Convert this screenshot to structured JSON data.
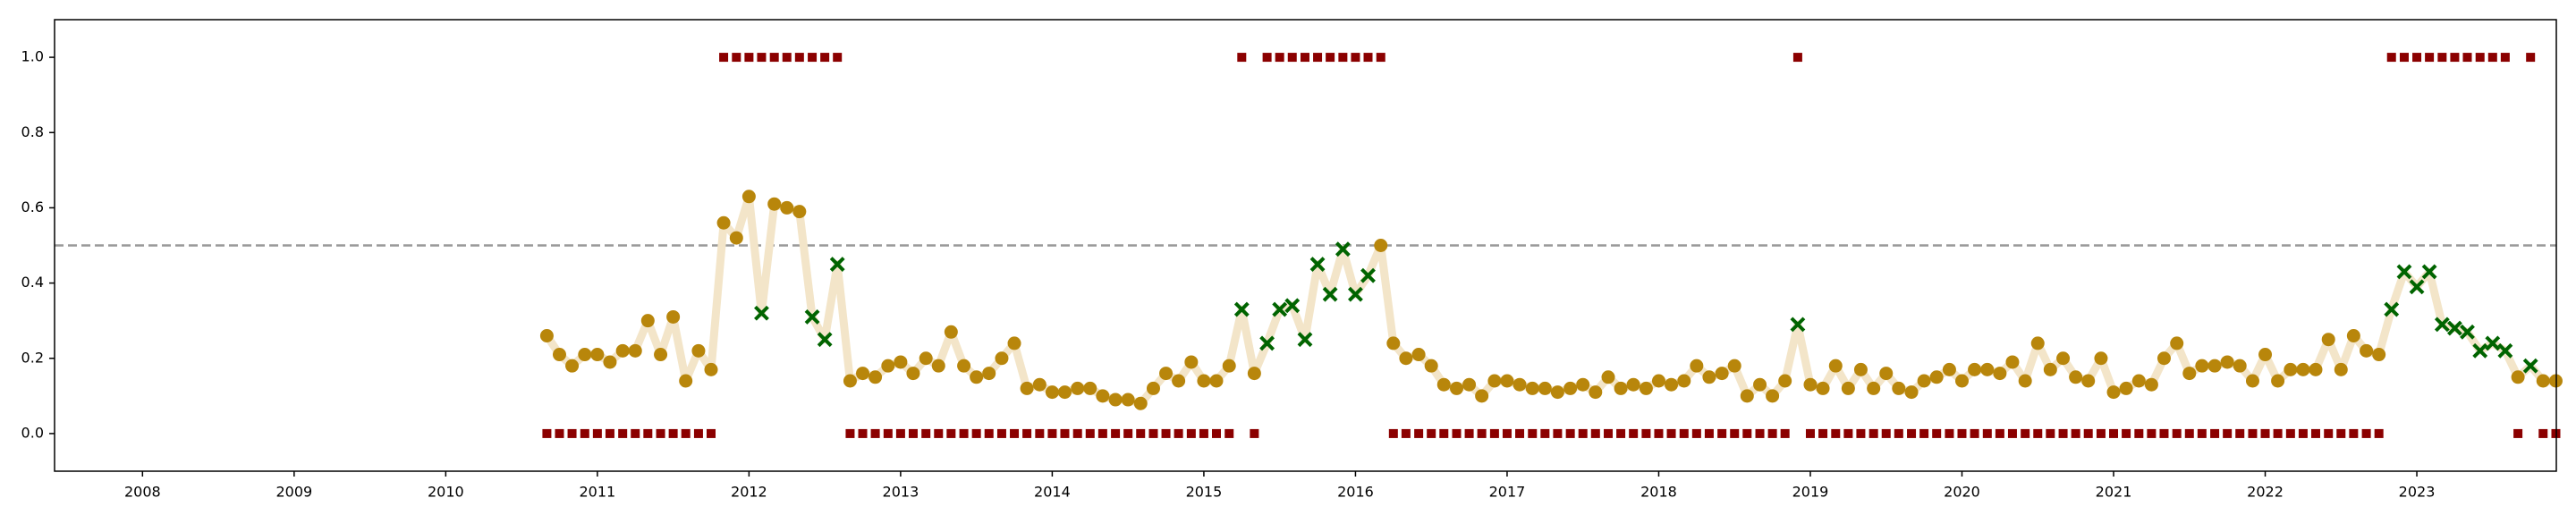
{
  "chart_data": {
    "type": "scatter",
    "xlim": [
      2007.42,
      2023.92
    ],
    "xticks": [
      2008,
      2009,
      2010,
      2011,
      2012,
      2013,
      2014,
      2015,
      2016,
      2017,
      2018,
      2019,
      2020,
      2021,
      2022,
      2023
    ],
    "ylim": [
      -0.1,
      1.1
    ],
    "yticks": [
      {
        "value": 0,
        "label": "0.0"
      },
      0.2,
      0.4,
      0.6,
      0.8,
      {
        "value": 1,
        "label": "1.0"
      }
    ],
    "threshold": {
      "value": 0.5,
      "color": "#999999"
    },
    "x": [
      2010.667,
      2010.75,
      2010.833,
      2010.917,
      2011.0,
      2011.083,
      2011.167,
      2011.25,
      2011.333,
      2011.417,
      2011.5,
      2011.583,
      2011.667,
      2011.75,
      2011.833,
      2011.917,
      2012.0,
      2012.083,
      2012.167,
      2012.25,
      2012.333,
      2012.417,
      2012.5,
      2012.583,
      2012.667,
      2012.75,
      2012.833,
      2012.917,
      2013.0,
      2013.083,
      2013.167,
      2013.25,
      2013.333,
      2013.417,
      2013.5,
      2013.583,
      2013.667,
      2013.75,
      2013.833,
      2013.917,
      2014.0,
      2014.083,
      2014.167,
      2014.25,
      2014.333,
      2014.417,
      2014.5,
      2014.583,
      2014.667,
      2014.75,
      2014.833,
      2014.917,
      2015.0,
      2015.083,
      2015.167,
      2015.25,
      2015.333,
      2015.417,
      2015.5,
      2015.583,
      2015.667,
      2015.75,
      2015.833,
      2015.917,
      2016.0,
      2016.083,
      2016.167,
      2016.25,
      2016.333,
      2016.417,
      2016.5,
      2016.583,
      2016.667,
      2016.75,
      2016.833,
      2016.917,
      2017.0,
      2017.083,
      2017.167,
      2017.25,
      2017.333,
      2017.417,
      2017.5,
      2017.583,
      2017.667,
      2017.75,
      2017.833,
      2017.917,
      2018.0,
      2018.083,
      2018.167,
      2018.25,
      2018.333,
      2018.417,
      2018.5,
      2018.583,
      2018.667,
      2018.75,
      2018.833,
      2018.917,
      2019.0,
      2019.083,
      2019.167,
      2019.25,
      2019.333,
      2019.417,
      2019.5,
      2019.583,
      2019.667,
      2019.75,
      2019.833,
      2019.917,
      2020.0,
      2020.083,
      2020.167,
      2020.25,
      2020.333,
      2020.417,
      2020.5,
      2020.583,
      2020.667,
      2020.75,
      2020.833,
      2020.917,
      2021.0,
      2021.083,
      2021.167,
      2021.25,
      2021.333,
      2021.417,
      2021.5,
      2021.583,
      2021.667,
      2021.75,
      2021.833,
      2021.917,
      2022.0,
      2022.083,
      2022.167,
      2022.25,
      2022.333,
      2022.417,
      2022.5,
      2022.583,
      2022.667,
      2022.75,
      2022.833,
      2022.917,
      2023.0,
      2023.083,
      2023.167,
      2023.25,
      2023.333,
      2023.417,
      2023.5,
      2023.583,
      2023.667,
      2023.75,
      2023.833,
      2023.917
    ],
    "series": [
      {
        "color": "#b8860b",
        "incorrect_color": "#006400",
        "line_color": "#f3e5c9",
        "values": [
          0.26,
          0.21,
          0.18,
          0.21,
          0.21,
          0.19,
          0.22,
          0.22,
          0.3,
          0.21,
          0.31,
          0.14,
          0.22,
          0.17,
          0.56,
          0.52,
          0.63,
          0.32,
          0.61,
          0.6,
          0.59,
          0.31,
          0.25,
          0.45,
          0.14,
          0.16,
          0.15,
          0.18,
          0.19,
          0.16,
          0.2,
          0.18,
          0.27,
          0.18,
          0.15,
          0.16,
          0.2,
          0.24,
          0.12,
          0.13,
          0.11,
          0.11,
          0.12,
          0.12,
          0.1,
          0.09,
          0.09,
          0.08,
          0.12,
          0.16,
          0.14,
          0.19,
          0.14,
          0.14,
          0.18,
          0.33,
          0.16,
          0.24,
          0.33,
          0.34,
          0.25,
          0.45,
          0.37,
          0.49,
          0.37,
          0.42,
          0.5,
          0.24,
          0.2,
          0.21,
          0.18,
          0.13,
          0.12,
          0.13,
          0.1,
          0.14,
          0.14,
          0.13,
          0.12,
          0.12,
          0.11,
          0.12,
          0.13,
          0.11,
          0.15,
          0.12,
          0.13,
          0.12,
          0.14,
          0.13,
          0.14,
          0.18,
          0.15,
          0.16,
          0.18,
          0.1,
          0.13,
          0.1,
          0.14,
          0.29,
          0.13,
          0.12,
          0.18,
          0.12,
          0.17,
          0.12,
          0.16,
          0.12,
          0.11,
          0.14,
          0.15,
          0.17,
          0.14,
          0.17,
          0.17,
          0.16,
          0.19,
          0.14,
          0.24,
          0.17,
          0.2,
          0.15,
          0.14,
          0.2,
          0.11,
          0.12,
          0.14,
          0.13,
          0.2,
          0.24,
          0.16,
          0.18,
          0.18,
          0.19,
          0.18,
          0.14,
          0.21,
          0.14,
          0.17,
          0.17,
          0.17,
          0.25,
          0.17,
          0.26,
          0.22,
          0.21,
          0.33,
          0.43,
          0.39,
          0.43,
          0.29,
          0.28,
          0.27,
          0.22,
          0.24,
          0.22,
          0.15,
          0.18,
          0.14,
          0.14
        ]
      },
      {
        "color": "#8b0000",
        "values": [
          0,
          0,
          0,
          0,
          0,
          0,
          0,
          0,
          0,
          0,
          0,
          0,
          0,
          0,
          1,
          1,
          1,
          1,
          1,
          1,
          1,
          1,
          1,
          1,
          0,
          0,
          0,
          0,
          0,
          0,
          0,
          0,
          0,
          0,
          0,
          0,
          0,
          0,
          0,
          0,
          0,
          0,
          0,
          0,
          0,
          0,
          0,
          0,
          0,
          0,
          0,
          0,
          0,
          0,
          0,
          1,
          0,
          1,
          1,
          1,
          1,
          1,
          1,
          1,
          1,
          1,
          1,
          0,
          0,
          0,
          0,
          0,
          0,
          0,
          0,
          0,
          0,
          0,
          0,
          0,
          0,
          0,
          0,
          0,
          0,
          0,
          0,
          0,
          0,
          0,
          0,
          0,
          0,
          0,
          0,
          0,
          0,
          0,
          0,
          1,
          0,
          0,
          0,
          0,
          0,
          0,
          0,
          0,
          0,
          0,
          0,
          0,
          0,
          0,
          0,
          0,
          0,
          0,
          0,
          0,
          0,
          0,
          0,
          0,
          0,
          0,
          0,
          0,
          0,
          0,
          0,
          0,
          0,
          0,
          0,
          0,
          0,
          0,
          0,
          0,
          0,
          0,
          0,
          0,
          0,
          0,
          1,
          1,
          1,
          1,
          1,
          1,
          1,
          1,
          1,
          1,
          0,
          1,
          0,
          0
        ]
      }
    ]
  }
}
